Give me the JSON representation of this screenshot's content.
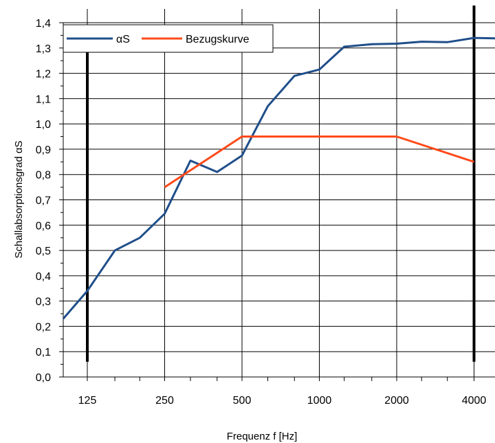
{
  "chart_data": {
    "type": "line",
    "title": "",
    "xlabel": "Frequenz f [Hz]",
    "ylabel": "Schallabsorptionsgrad αS",
    "x_scale": "log",
    "xlim": [
      100,
      5000
    ],
    "ylim": [
      0.0,
      1.4
    ],
    "yticks": [
      "0,0",
      "0,1",
      "0,2",
      "0,3",
      "0,4",
      "0,5",
      "0,6",
      "0,7",
      "0,8",
      "0,9",
      "1,0",
      "1,1",
      "1,2",
      "1,3",
      "1,4"
    ],
    "xticks": [
      {
        "value": 125,
        "label": "125"
      },
      {
        "value": 250,
        "label": "250"
      },
      {
        "value": 500,
        "label": "500"
      },
      {
        "value": 1000,
        "label": "1000"
      },
      {
        "value": 2000,
        "label": "2000"
      },
      {
        "value": 4000,
        "label": "4000"
      }
    ],
    "grid": true,
    "legend_position": "top-left",
    "series": [
      {
        "name": "αS",
        "color": "#1f4e8a",
        "x": [
          100,
          125,
          160,
          200,
          250,
          315,
          400,
          500,
          630,
          800,
          1000,
          1250,
          1600,
          2000,
          2500,
          3150,
          4000,
          5000
        ],
        "y": [
          0.23,
          0.34,
          0.5,
          0.55,
          0.645,
          0.855,
          0.81,
          0.875,
          1.07,
          1.19,
          1.215,
          1.305,
          1.315,
          1.317,
          1.325,
          1.323,
          1.34,
          1.338
        ]
      },
      {
        "name": "Bezugskurve",
        "color": "#ff4a1a",
        "x": [
          250,
          500,
          2000,
          4000
        ],
        "y": [
          0.75,
          0.95,
          0.95,
          0.85
        ]
      }
    ],
    "markers": [
      {
        "x": 125,
        "y_from": 0.06,
        "y_to": 1.34,
        "color": "#000000"
      },
      {
        "x": 4000,
        "y_from": 0.06,
        "y_to": 1.4,
        "color": "#000000"
      }
    ]
  }
}
